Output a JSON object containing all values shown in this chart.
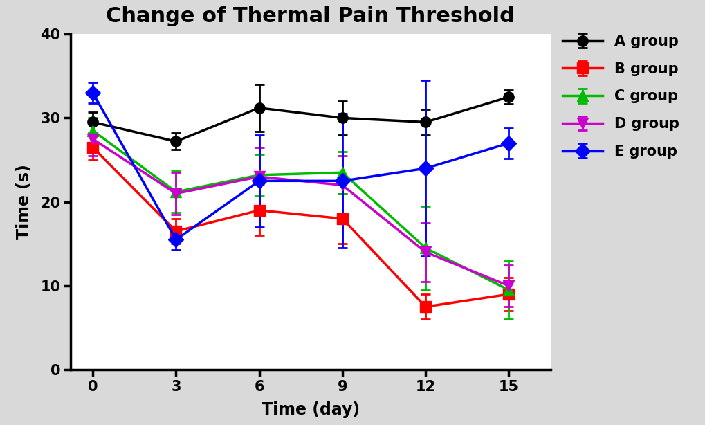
{
  "title": "Change of Thermal Pain Threshold",
  "xlabel": "Time (day)",
  "ylabel": "Time (s)",
  "x": [
    0,
    3,
    6,
    9,
    12,
    15
  ],
  "groups": [
    {
      "name": "A group",
      "color": "#000000",
      "marker": "o",
      "markersize": 11,
      "y": [
        29.5,
        27.2,
        31.2,
        30.0,
        29.5,
        32.5
      ],
      "yerr": [
        1.2,
        1.0,
        2.8,
        2.0,
        1.5,
        0.8
      ]
    },
    {
      "name": "B group",
      "color": "#ff0000",
      "marker": "s",
      "markersize": 11,
      "y": [
        26.5,
        16.5,
        19.0,
        18.0,
        7.5,
        9.0
      ],
      "yerr": [
        1.5,
        1.5,
        3.0,
        3.0,
        1.5,
        2.0
      ]
    },
    {
      "name": "C group",
      "color": "#00bb00",
      "marker": "^",
      "markersize": 11,
      "y": [
        28.5,
        21.2,
        23.2,
        23.5,
        14.5,
        9.5
      ],
      "yerr": [
        1.5,
        2.5,
        2.5,
        2.5,
        5.0,
        3.5
      ]
    },
    {
      "name": "D group",
      "color": "#cc00cc",
      "marker": "v",
      "markersize": 11,
      "y": [
        27.5,
        21.0,
        23.0,
        22.0,
        14.0,
        10.0
      ],
      "yerr": [
        2.0,
        2.5,
        3.5,
        3.5,
        3.5,
        2.5
      ]
    },
    {
      "name": "E group",
      "color": "#0000ff",
      "marker": "D",
      "markersize": 11,
      "y": [
        33.0,
        15.5,
        22.5,
        22.5,
        24.0,
        27.0
      ],
      "yerr": [
        1.2,
        1.2,
        5.5,
        8.0,
        10.5,
        1.8
      ]
    }
  ],
  "ylim": [
    0,
    40
  ],
  "xlim": [
    -0.8,
    16.5
  ],
  "yticks": [
    0,
    10,
    20,
    30,
    40
  ],
  "xticks": [
    0,
    3,
    6,
    9,
    12,
    15
  ],
  "linewidth": 2.5,
  "capsize": 5,
  "elinewidth": 2.0,
  "capthick": 2.0,
  "title_fontsize": 22,
  "label_fontsize": 17,
  "tick_fontsize": 15,
  "legend_fontsize": 15,
  "figure_facecolor": "#d9d9d9",
  "axes_facecolor": "#ffffff"
}
